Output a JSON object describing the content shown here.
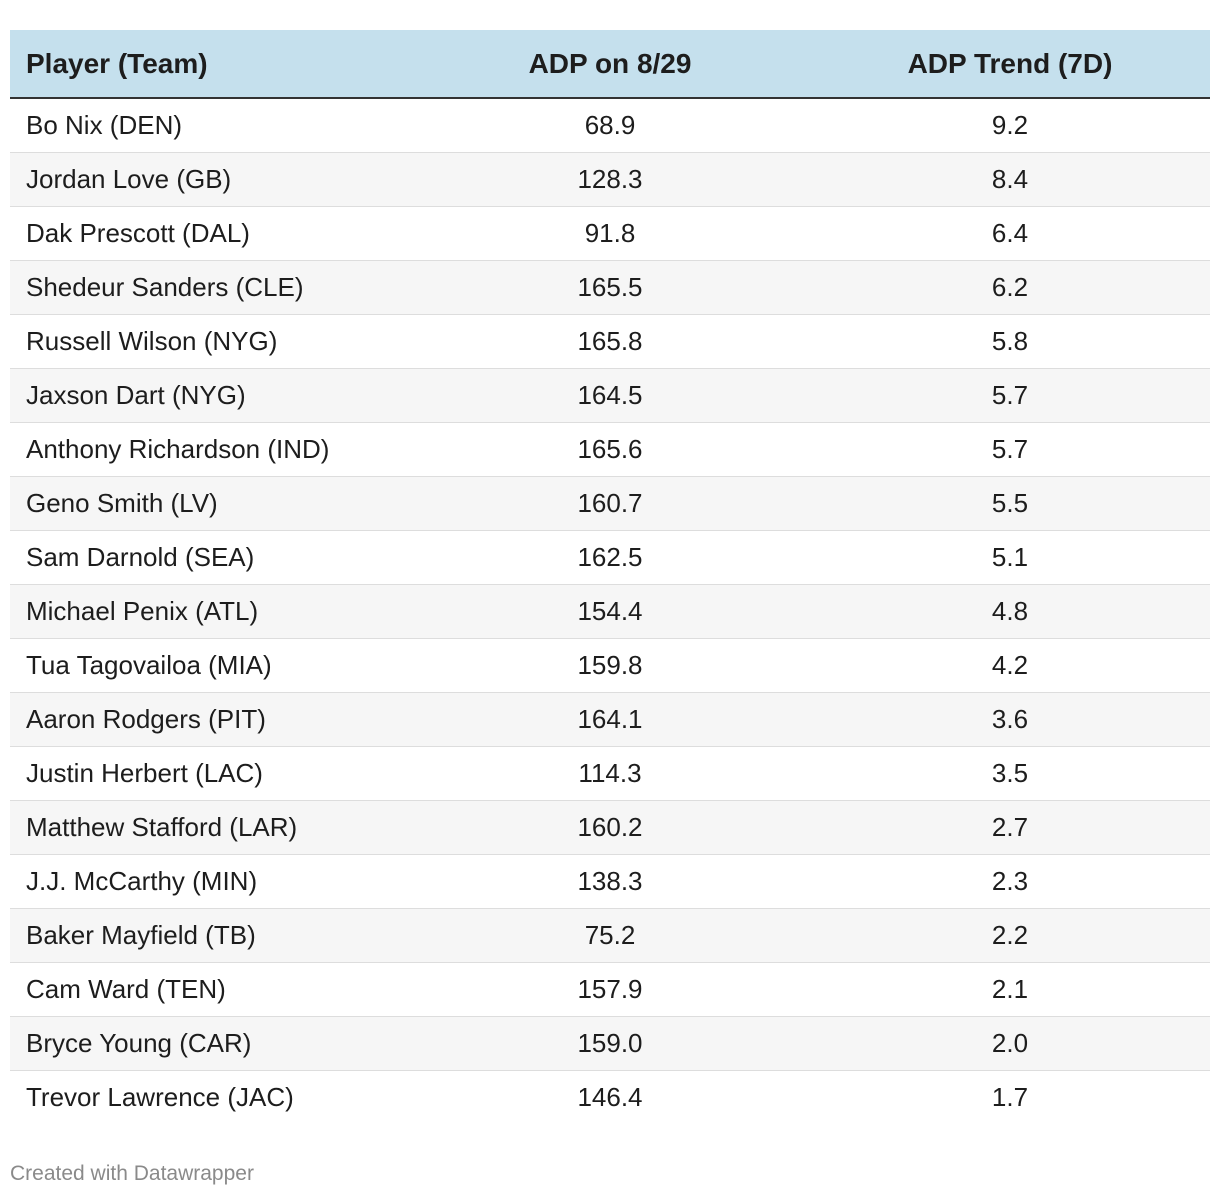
{
  "chart_data": {
    "type": "table",
    "columns": [
      "Player (Team)",
      "ADP on 8/29",
      "ADP Trend (7D)"
    ],
    "rows": [
      [
        "Bo Nix (DEN)",
        "68.9",
        "9.2"
      ],
      [
        "Jordan Love (GB)",
        "128.3",
        "8.4"
      ],
      [
        "Dak Prescott (DAL)",
        "91.8",
        "6.4"
      ],
      [
        "Shedeur Sanders (CLE)",
        "165.5",
        "6.2"
      ],
      [
        "Russell Wilson (NYG)",
        "165.8",
        "5.8"
      ],
      [
        "Jaxson Dart (NYG)",
        "164.5",
        "5.7"
      ],
      [
        "Anthony Richardson (IND)",
        "165.6",
        "5.7"
      ],
      [
        "Geno Smith (LV)",
        "160.7",
        "5.5"
      ],
      [
        "Sam Darnold (SEA)",
        "162.5",
        "5.1"
      ],
      [
        "Michael Penix (ATL)",
        "154.4",
        "4.8"
      ],
      [
        "Tua Tagovailoa (MIA)",
        "159.8",
        "4.2"
      ],
      [
        "Aaron Rodgers (PIT)",
        "164.1",
        "3.6"
      ],
      [
        "Justin Herbert (LAC)",
        "114.3",
        "3.5"
      ],
      [
        "Matthew Stafford (LAR)",
        "160.2",
        "2.7"
      ],
      [
        "J.J. McCarthy (MIN)",
        "138.3",
        "2.3"
      ],
      [
        "Baker Mayfield (TB)",
        "75.2",
        "2.2"
      ],
      [
        "Cam Ward (TEN)",
        "157.9",
        "2.1"
      ],
      [
        "Bryce Young (CAR)",
        "159.0",
        "2.0"
      ],
      [
        "Trevor Lawrence (JAC)",
        "146.4",
        "1.7"
      ]
    ]
  },
  "footer": {
    "credit": "Created with Datawrapper"
  },
  "colors": {
    "header_background": "#c5e0ed",
    "stripe_background": "#f6f6f6",
    "footer_text": "#8a8a8a"
  }
}
